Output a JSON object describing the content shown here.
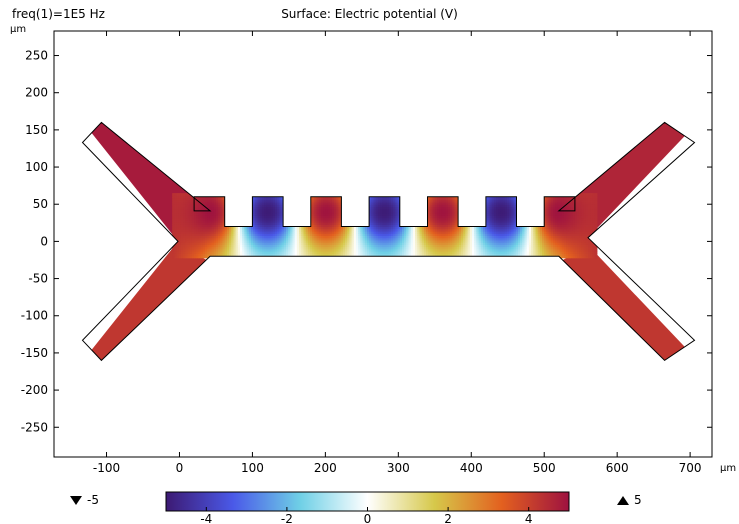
{
  "header": {
    "freq": "freq(1)=1E5 Hz",
    "title": "Surface: Electric potential (V)"
  },
  "axes": {
    "y_unit": "µm",
    "x_unit": "µm"
  },
  "range_indicators": {
    "min_label": "-5",
    "max_label": "5"
  },
  "colors": {
    "cmap": [
      "#3d1a73",
      "#4a59e8",
      "#6fd0e6",
      "#ffffff",
      "#d6c84a",
      "#e3601f",
      "#9e1240"
    ]
  },
  "chart_data": {
    "type": "heatmap",
    "title": "Surface: Electric potential (V)",
    "xlabel": "µm",
    "ylabel": "µm",
    "xlim": [
      -172,
      730
    ],
    "ylim": [
      -290,
      283
    ],
    "xticks": [
      -100,
      0,
      100,
      200,
      300,
      400,
      500,
      600,
      700
    ],
    "yticks": [
      250,
      200,
      150,
      100,
      50,
      0,
      -50,
      -100,
      -150,
      -200,
      -250
    ],
    "grid": false,
    "colorbar": {
      "range": [
        -5,
        5
      ],
      "ticks": [
        -4,
        -2,
        0,
        2,
        4
      ]
    },
    "geometry": {
      "outline": [
        [
          -107,
          160
        ],
        [
          42,
          41
        ],
        [
          20,
          41
        ],
        [
          20,
          60
        ],
        [
          62,
          60
        ],
        [
          62,
          20
        ],
        [
          100,
          20
        ],
        [
          100,
          60
        ],
        [
          142,
          60
        ],
        [
          142,
          20
        ],
        [
          180,
          20
        ],
        [
          180,
          60
        ],
        [
          222,
          60
        ],
        [
          222,
          20
        ],
        [
          260,
          20
        ],
        [
          260,
          60
        ],
        [
          302,
          60
        ],
        [
          302,
          20
        ],
        [
          340,
          20
        ],
        [
          340,
          60
        ],
        [
          382,
          60
        ],
        [
          382,
          20
        ],
        [
          420,
          20
        ],
        [
          420,
          60
        ],
        [
          462,
          60
        ],
        [
          462,
          20
        ],
        [
          500,
          20
        ],
        [
          500,
          60
        ],
        [
          542,
          60
        ],
        [
          542,
          41
        ],
        [
          520,
          41
        ],
        [
          665,
          160
        ],
        [
          706,
          133
        ],
        [
          560,
          5
        ],
        [
          706,
          -133
        ],
        [
          665,
          -160
        ],
        [
          520,
          -20
        ],
        [
          42,
          -20
        ],
        [
          -107,
          -160
        ],
        [
          -133,
          -133
        ],
        [
          -2,
          0
        ],
        [
          -133,
          133
        ]
      ],
      "electrodes": [
        {
          "x": [
            20,
            62
          ],
          "potential": 5
        },
        {
          "x": [
            100,
            142
          ],
          "potential": -5
        },
        {
          "x": [
            180,
            222
          ],
          "potential": 5
        },
        {
          "x": [
            260,
            302
          ],
          "potential": -5
        },
        {
          "x": [
            340,
            382
          ],
          "potential": 5
        },
        {
          "x": [
            420,
            462
          ],
          "potential": -5
        },
        {
          "x": [
            500,
            542
          ],
          "potential": 5
        }
      ],
      "arms": [
        {
          "name": "upper-left",
          "potential": 4.8
        },
        {
          "name": "lower-left",
          "potential": 4.2
        },
        {
          "name": "upper-right",
          "potential": 4.6
        },
        {
          "name": "lower-right",
          "potential": 4.2
        }
      ]
    }
  }
}
